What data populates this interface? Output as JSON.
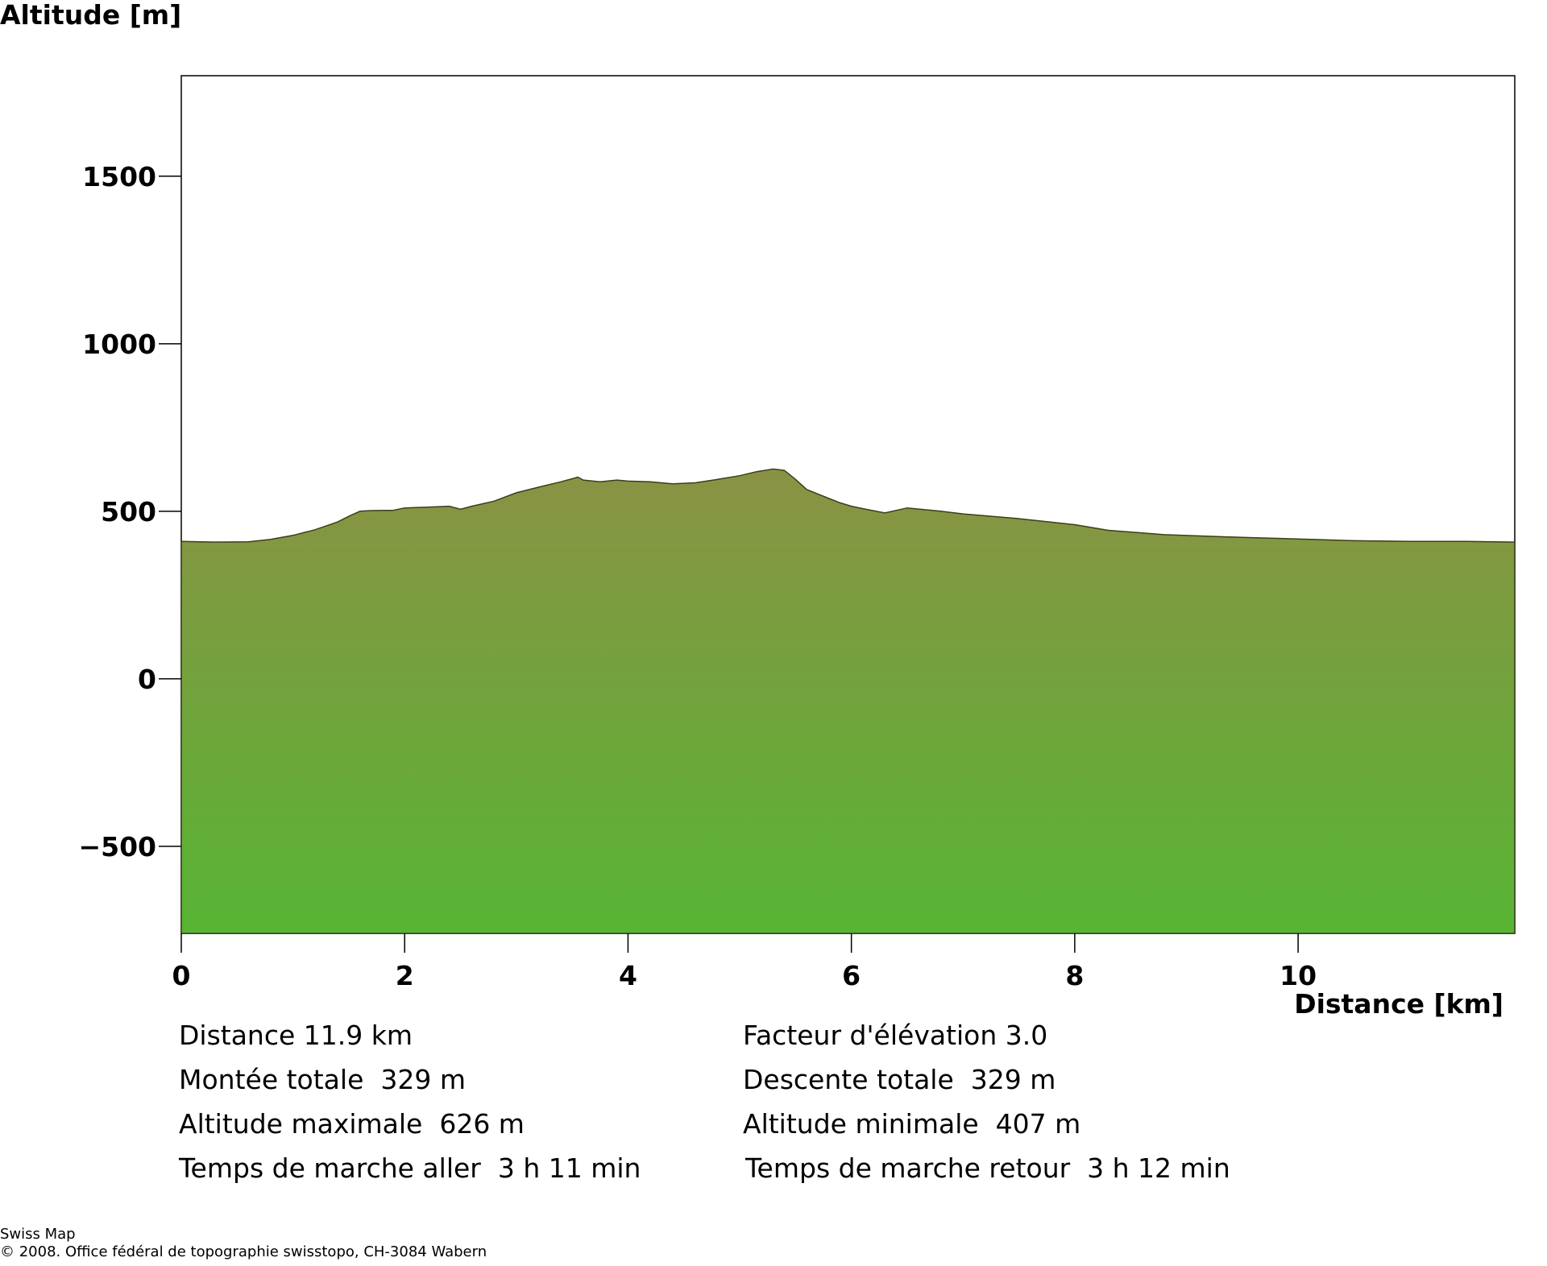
{
  "chart_data": {
    "type": "area",
    "ylabel": "Altitude [m]",
    "xlabel": "Distance [km]",
    "xlim": [
      0,
      11.94
    ],
    "ylim": [
      -760,
      1800
    ],
    "xticks": [
      0,
      2,
      4,
      6,
      8,
      10
    ],
    "yticks": [
      -500,
      0,
      500,
      1000,
      1500
    ],
    "grid": false,
    "fill_gradient": {
      "top": "#8a9244",
      "bottom": "#58b534"
    },
    "x": [
      0,
      0.3,
      0.6,
      0.8,
      1.0,
      1.2,
      1.4,
      1.5,
      1.6,
      1.7,
      1.9,
      2.0,
      2.2,
      2.4,
      2.5,
      2.6,
      2.8,
      3.0,
      3.2,
      3.4,
      3.5,
      3.55,
      3.6,
      3.75,
      3.9,
      4.0,
      4.2,
      4.4,
      4.6,
      4.8,
      5.0,
      5.15,
      5.3,
      5.4,
      5.5,
      5.6,
      5.8,
      5.9,
      6.0,
      6.1,
      6.3,
      6.5,
      6.8,
      7.0,
      7.5,
      8.0,
      8.3,
      8.8,
      9.5,
      10.0,
      10.5,
      11.0,
      11.5,
      11.94
    ],
    "y": [
      410,
      408,
      409,
      416,
      428,
      445,
      468,
      485,
      500,
      502,
      503,
      510,
      512,
      515,
      506,
      515,
      530,
      555,
      572,
      588,
      597,
      602,
      593,
      588,
      593,
      590,
      588,
      582,
      585,
      595,
      606,
      618,
      626,
      622,
      595,
      565,
      538,
      525,
      515,
      508,
      495,
      510,
      500,
      492,
      478,
      460,
      443,
      430,
      422,
      417,
      412,
      410,
      410,
      408
    ]
  },
  "stats": {
    "distance": "Distance 11.9 km",
    "elevation_factor": "Facteur d'élévation 3.0",
    "total_ascent": "Montée totale  329 m",
    "total_descent": "Descente totale  329 m",
    "max_altitude": "Altitude maximale  626 m",
    "min_altitude": "Altitude minimale  407 m",
    "walk_time_out": "Temps de marche aller  3 h 11 min",
    "walk_time_back": "Temps de marche retour  3 h 12 min"
  },
  "credits": {
    "line1": "Swiss Map",
    "line2": "© 2008. Office fédéral de topographie swisstopo, CH-3084 Wabern"
  }
}
